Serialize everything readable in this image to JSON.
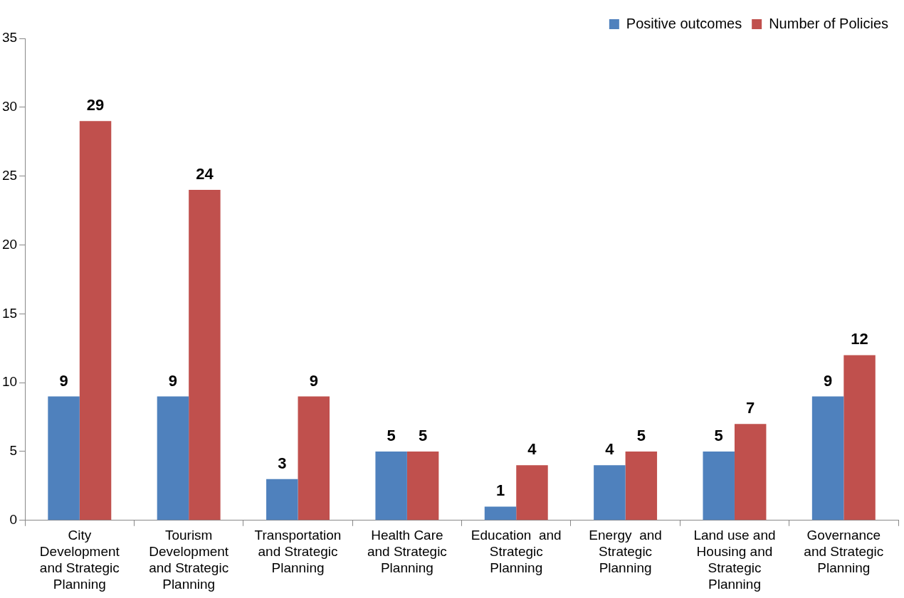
{
  "chart_data": {
    "type": "bar",
    "categories": [
      "City\nDevelopment\nand Strategic\nPlanning",
      "Tourism\nDevelopment\nand Strategic\nPlanning",
      "Transportation\nand Strategic\nPlanning",
      "Health Care\nand Strategic\nPlanning",
      "Education  and\nStrategic\nPlanning",
      "Energy  and\nStrategic\nPlanning",
      "Land use and\nHousing and\nStrategic\nPlanning",
      "Governance\nand Strategic\nPlanning"
    ],
    "series": [
      {
        "name": "Positive outcomes",
        "color": "#4f81bd",
        "values": [
          9,
          9,
          3,
          5,
          1,
          4,
          5,
          9
        ]
      },
      {
        "name": "Number of Policies",
        "color": "#c0504d",
        "values": [
          29,
          24,
          9,
          5,
          4,
          5,
          7,
          12
        ]
      }
    ],
    "ylim": [
      0,
      35
    ],
    "yticks": [
      0,
      5,
      10,
      15,
      20,
      25,
      30,
      35
    ],
    "grid": false,
    "legend": "top right",
    "data_labels": true
  }
}
